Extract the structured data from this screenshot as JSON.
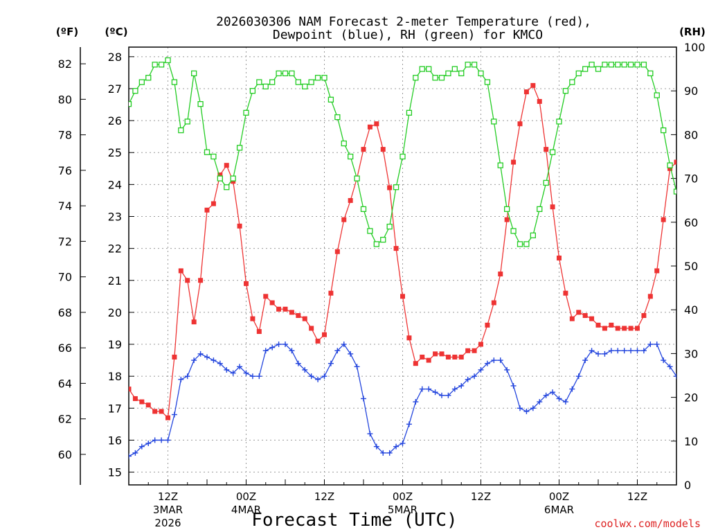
{
  "title_line1": "2026030306 NAM Forecast 2-meter Temperature (red),",
  "title_line2": "Dewpoint (blue), RH (green) for KMCO",
  "left_outer_unit": "(ºF)",
  "left_inner_unit": "(ºC)",
  "right_unit": "(RH)",
  "xlabel": "Forecast Time (UTC)",
  "credit": "coolwx.com/models",
  "colors": {
    "temperature": "#ee3333",
    "dewpoint": "#2244dd",
    "rh": "#22cc22",
    "grid": "#999999",
    "credit": "#dd2222"
  },
  "chart_data": {
    "type": "line",
    "title": "2026030306 NAM Forecast 2-meter Temperature (red), Dewpoint (blue), RH (green) for KMCO",
    "xlabel": "Forecast Time (UTC)",
    "x_unit": "hours from 2026-03-03 06Z",
    "x": [
      0,
      1,
      2,
      3,
      4,
      5,
      6,
      7,
      8,
      9,
      10,
      11,
      12,
      13,
      14,
      15,
      16,
      17,
      18,
      19,
      20,
      21,
      22,
      23,
      24,
      25,
      26,
      27,
      28,
      29,
      30,
      31,
      32,
      33,
      34,
      35,
      36,
      37,
      38,
      39,
      40,
      41,
      42,
      43,
      44,
      45,
      46,
      47,
      48,
      49,
      50,
      51,
      52,
      53,
      54,
      55,
      56,
      57,
      58,
      59,
      60,
      61,
      62,
      63,
      64,
      65,
      66,
      67,
      68,
      69,
      70,
      71,
      72,
      73,
      74,
      75,
      76,
      77,
      78,
      79,
      80,
      81,
      82,
      83,
      84
    ],
    "xlim": [
      0,
      84
    ],
    "x_ticks": [
      {
        "x": 6,
        "label": "12Z",
        "sub1": "3MAR",
        "sub2": "2026"
      },
      {
        "x": 18,
        "label": "00Z",
        "sub1": "4MAR",
        "sub2": ""
      },
      {
        "x": 30,
        "label": "12Z",
        "sub1": "",
        "sub2": ""
      },
      {
        "x": 42,
        "label": "00Z",
        "sub1": "5MAR",
        "sub2": ""
      },
      {
        "x": 54,
        "label": "12Z",
        "sub1": "",
        "sub2": ""
      },
      {
        "x": 66,
        "label": "00Z",
        "sub1": "6MAR",
        "sub2": ""
      },
      {
        "x": 78,
        "label": "12Z",
        "sub1": "",
        "sub2": ""
      }
    ],
    "y_celsius": {
      "ylim": [
        14.6,
        28.3
      ],
      "ticks": [
        15,
        16,
        17,
        18,
        19,
        20,
        21,
        22,
        23,
        24,
        25,
        26,
        27,
        28
      ]
    },
    "y_fahrenheit": {
      "ticks": [
        60,
        62,
        64,
        66,
        68,
        70,
        72,
        74,
        76,
        78,
        80,
        82
      ]
    },
    "y_rh": {
      "ylim": [
        0,
        100
      ],
      "ticks": [
        0,
        10,
        20,
        30,
        40,
        50,
        60,
        70,
        80,
        90,
        100
      ]
    },
    "series": [
      {
        "name": "Temperature",
        "axis": "celsius",
        "marker": "filled-square",
        "values": [
          17.6,
          17.3,
          17.2,
          17.1,
          16.9,
          16.9,
          16.7,
          18.6,
          21.3,
          21.0,
          19.7,
          21.0,
          23.2,
          23.4,
          24.3,
          24.6,
          24.1,
          22.7,
          20.9,
          19.8,
          19.4,
          20.5,
          20.3,
          20.1,
          20.1,
          20.0,
          19.9,
          19.8,
          19.5,
          19.1,
          19.3,
          20.6,
          21.9,
          22.9,
          23.5,
          24.2,
          25.1,
          25.8,
          25.9,
          25.1,
          23.9,
          22.0,
          20.5,
          19.2,
          18.4,
          18.6,
          18.5,
          18.7,
          18.7,
          18.6,
          18.6,
          18.6,
          18.8,
          18.8,
          19.0,
          19.6,
          20.3,
          21.2,
          22.9,
          24.7,
          25.9,
          26.9,
          27.1,
          26.6,
          25.1,
          23.3,
          21.7,
          20.6,
          19.8,
          20.0,
          19.9,
          19.8,
          19.6,
          19.5,
          19.6,
          19.5,
          19.5,
          19.5,
          19.5,
          19.9,
          20.5,
          21.3,
          22.9,
          24.5,
          24.7
        ]
      },
      {
        "name": "Dewpoint",
        "axis": "celsius",
        "marker": "plus",
        "values": [
          15.5,
          15.6,
          15.8,
          15.9,
          16.0,
          16.0,
          16.0,
          16.8,
          17.9,
          18.0,
          18.5,
          18.7,
          18.6,
          18.5,
          18.4,
          18.2,
          18.1,
          18.3,
          18.1,
          18.0,
          18.0,
          18.8,
          18.9,
          19.0,
          19.0,
          18.8,
          18.4,
          18.2,
          18.0,
          17.9,
          18.0,
          18.4,
          18.8,
          19.0,
          18.7,
          18.3,
          17.3,
          16.2,
          15.8,
          15.6,
          15.6,
          15.8,
          15.9,
          16.5,
          17.2,
          17.6,
          17.6,
          17.5,
          17.4,
          17.4,
          17.6,
          17.7,
          17.9,
          18.0,
          18.2,
          18.4,
          18.5,
          18.5,
          18.2,
          17.7,
          17.0,
          16.9,
          17.0,
          17.2,
          17.4,
          17.5,
          17.3,
          17.2,
          17.6,
          18.0,
          18.5,
          18.8,
          18.7,
          18.7,
          18.8,
          18.8,
          18.8,
          18.8,
          18.8,
          18.8,
          19.0,
          19.0,
          18.5,
          18.3,
          18.0
        ]
      },
      {
        "name": "RH",
        "axis": "rh",
        "marker": "open-square",
        "values": [
          87,
          90,
          92,
          93,
          96,
          96,
          97,
          92,
          81,
          83,
          94,
          87,
          76,
          75,
          70,
          68,
          70,
          77,
          85,
          90,
          92,
          91,
          92,
          94,
          94,
          94,
          92,
          91,
          92,
          93,
          93,
          88,
          84,
          78,
          75,
          70,
          63,
          58,
          55,
          56,
          59,
          68,
          75,
          85,
          93,
          95,
          95,
          93,
          93,
          94,
          95,
          94,
          96,
          96,
          94,
          92,
          83,
          73,
          63,
          58,
          55,
          55,
          57,
          63,
          69,
          76,
          83,
          90,
          92,
          94,
          95,
          96,
          95,
          96,
          96,
          96,
          96,
          96,
          96,
          96,
          94,
          89,
          81,
          73,
          67
        ]
      }
    ],
    "grid": true
  }
}
